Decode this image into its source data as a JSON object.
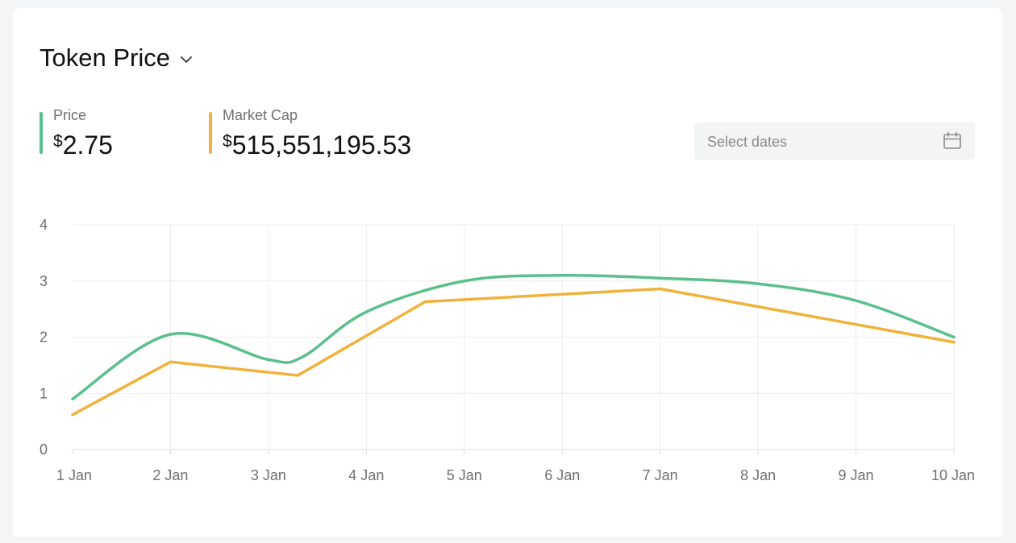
{
  "header": {
    "title": "Token Price"
  },
  "metrics": {
    "price": {
      "label": "Price",
      "currency": "$",
      "value": "2.75",
      "color": "#5bbf8c"
    },
    "market_cap": {
      "label": "Market Cap",
      "currency": "$",
      "value": "515,551,195.53",
      "color": "#f0b23c"
    }
  },
  "date_picker": {
    "placeholder": "Select dates",
    "icon": "calendar-icon"
  },
  "chart_data": {
    "type": "line",
    "x_labels": [
      "1 Jan",
      "2 Jan",
      "3 Jan",
      "4 Jan",
      "5 Jan",
      "6 Jan",
      "7 Jan",
      "8 Jan",
      "9 Jan",
      "10 Jan"
    ],
    "y_ticks": [
      0,
      1,
      2,
      3,
      4
    ],
    "ylim": [
      0,
      4
    ],
    "xlim": [
      0,
      9
    ],
    "grid": true,
    "series": [
      {
        "key": "price",
        "color": "#5bbf8c",
        "smooth": true,
        "points": [
          [
            0,
            0.9
          ],
          [
            1,
            2.05
          ],
          [
            2,
            1.6
          ],
          [
            2.35,
            1.65
          ],
          [
            3,
            2.45
          ],
          [
            4,
            3.0
          ],
          [
            5,
            3.1
          ],
          [
            6,
            3.05
          ],
          [
            7,
            2.95
          ],
          [
            8,
            2.65
          ],
          [
            9,
            2.0
          ]
        ]
      },
      {
        "key": "market_cap",
        "color": "#f0b23c",
        "smooth": false,
        "points": [
          [
            0,
            0.62
          ],
          [
            1,
            1.56
          ],
          [
            2.3,
            1.32
          ],
          [
            3.6,
            2.63
          ],
          [
            6,
            2.86
          ],
          [
            9,
            1.91
          ]
        ]
      }
    ]
  }
}
